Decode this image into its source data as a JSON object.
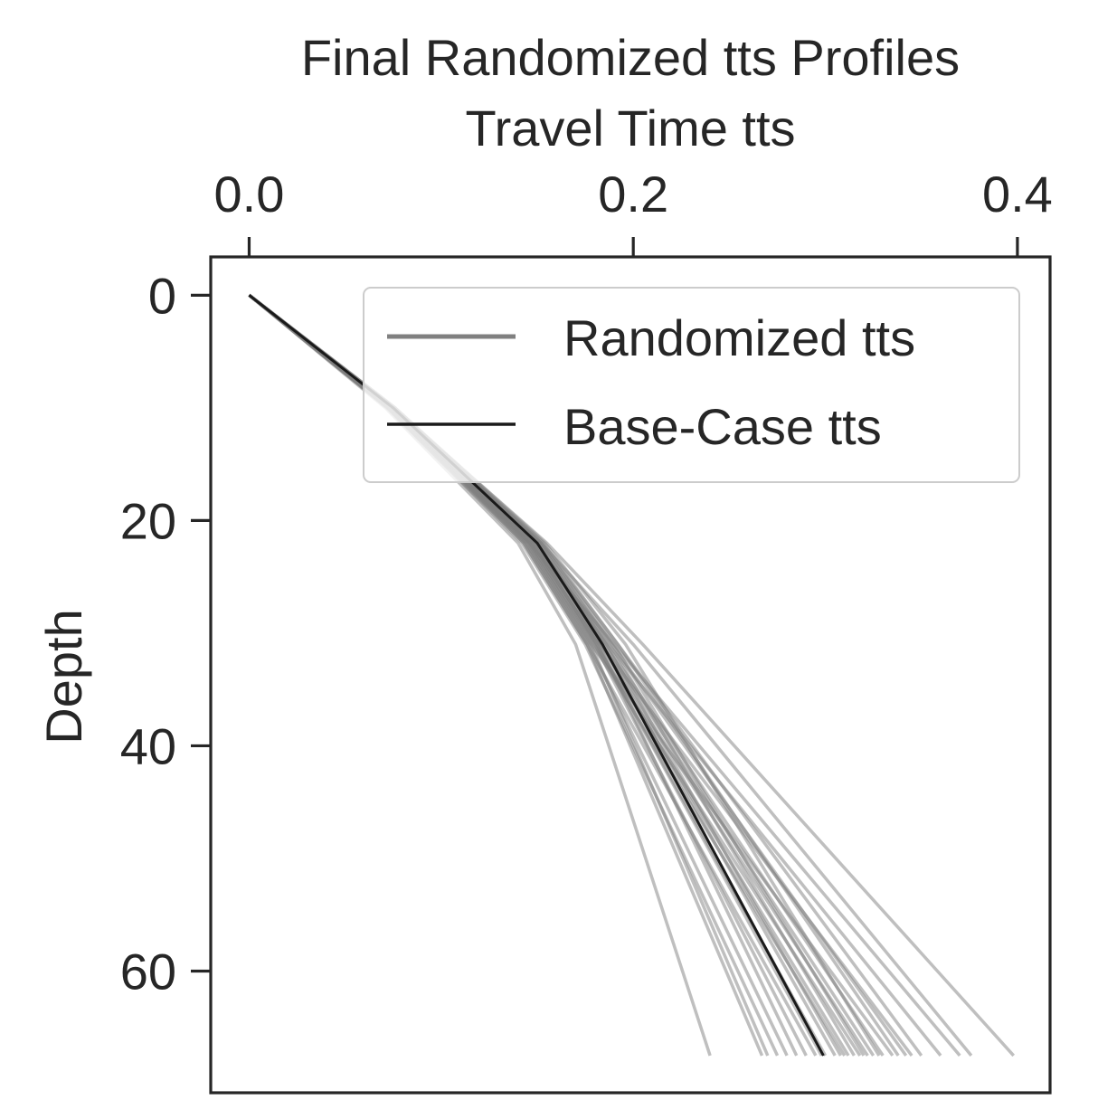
{
  "chart_data": {
    "type": "line",
    "title": "Final Randomized tts Profiles",
    "xlabel": "Travel Time tts",
    "ylabel": "Depth",
    "x_axis_position": "top",
    "y_axis_inverted": true,
    "xlim": [
      -0.02,
      0.417
    ],
    "ylim": [
      -3.4,
      70.8
    ],
    "x_ticks": [
      "0.0",
      "0.2",
      "0.4"
    ],
    "x_tick_values": [
      0.0,
      0.2,
      0.4
    ],
    "y_ticks": [
      "0",
      "20",
      "40",
      "60"
    ],
    "y_tick_values": [
      0,
      20,
      40,
      60
    ],
    "legend": {
      "placement": "top-right",
      "entries": [
        {
          "label": "Randomized tts",
          "color": "#808080"
        },
        {
          "label": "Base-Case tts",
          "color": "#1a1a1a"
        }
      ]
    },
    "colors": {
      "randomized": "#808080",
      "base_case": "#1a1a1a",
      "axes": "#262626"
    },
    "grid": false,
    "depth": [
      0,
      10,
      22,
      31,
      67.5
    ],
    "base_case": {
      "name": "Base-Case tts",
      "x": [
        0.0,
        0.075,
        0.15,
        0.184,
        0.299
      ]
    },
    "randomized": {
      "name": "Randomized tts",
      "series": [
        {
          "x": [
            0.0,
            0.075,
            0.155,
            0.205,
            0.398
          ]
        },
        {
          "x": [
            0.0,
            0.074,
            0.152,
            0.2,
            0.376
          ]
        },
        {
          "x": [
            0.0,
            0.073,
            0.146,
            0.19,
            0.37
          ]
        },
        {
          "x": [
            0.0,
            0.075,
            0.15,
            0.187,
            0.36
          ]
        },
        {
          "x": [
            0.0,
            0.076,
            0.153,
            0.192,
            0.35
          ]
        },
        {
          "x": [
            0.0,
            0.074,
            0.148,
            0.183,
            0.345
          ]
        },
        {
          "x": [
            0.0,
            0.072,
            0.144,
            0.178,
            0.335
          ]
        },
        {
          "x": [
            0.0,
            0.075,
            0.15,
            0.186,
            0.33
          ]
        },
        {
          "x": [
            0.0,
            0.074,
            0.149,
            0.185,
            0.325
          ]
        },
        {
          "x": [
            0.0,
            0.076,
            0.152,
            0.19,
            0.32
          ]
        },
        {
          "x": [
            0.0,
            0.073,
            0.146,
            0.18,
            0.318
          ]
        },
        {
          "x": [
            0.0,
            0.075,
            0.151,
            0.188,
            0.315
          ]
        },
        {
          "x": [
            0.0,
            0.074,
            0.147,
            0.182,
            0.312
          ]
        },
        {
          "x": [
            0.0,
            0.073,
            0.145,
            0.179,
            0.31
          ]
        },
        {
          "x": [
            0.0,
            0.075,
            0.15,
            0.184,
            0.305
          ]
        },
        {
          "x": [
            0.0,
            0.074,
            0.148,
            0.181,
            0.3
          ]
        },
        {
          "x": [
            0.0,
            0.072,
            0.143,
            0.176,
            0.295
          ]
        },
        {
          "x": [
            0.0,
            0.073,
            0.146,
            0.18,
            0.29
          ]
        },
        {
          "x": [
            0.0,
            0.074,
            0.147,
            0.182,
            0.285
          ]
        },
        {
          "x": [
            0.0,
            0.073,
            0.144,
            0.177,
            0.28
          ]
        },
        {
          "x": [
            0.0,
            0.072,
            0.142,
            0.175,
            0.275
          ]
        },
        {
          "x": [
            0.0,
            0.073,
            0.145,
            0.178,
            0.27
          ]
        },
        {
          "x": [
            0.0,
            0.072,
            0.143,
            0.176,
            0.267
          ]
        },
        {
          "x": [
            0.0,
            0.071,
            0.14,
            0.17,
            0.24
          ]
        },
        {
          "x": [
            0.0,
            0.076,
            0.154,
            0.196,
            0.328
          ]
        },
        {
          "x": [
            0.0,
            0.075,
            0.152,
            0.192,
            0.338
          ]
        },
        {
          "x": [
            0.0,
            0.074,
            0.149,
            0.186,
            0.308
          ]
        },
        {
          "x": [
            0.0,
            0.073,
            0.146,
            0.181,
            0.298
          ]
        },
        {
          "x": [
            0.0,
            0.074,
            0.148,
            0.183,
            0.322
          ]
        },
        {
          "x": [
            0.0,
            0.075,
            0.151,
            0.189,
            0.342
          ]
        }
      ]
    }
  }
}
